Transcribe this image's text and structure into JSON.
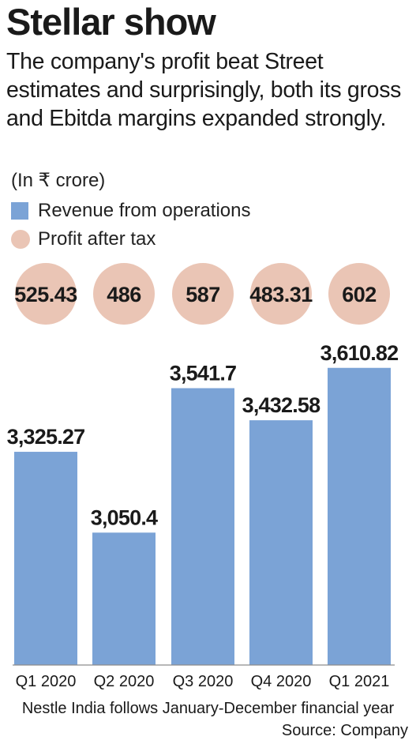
{
  "header": {
    "title": "Stellar show",
    "subtitle": "The company's profit beat Street estimates and surprisingly, both its gross and Ebitda margins expanded strongly.",
    "unit": "(In ₹ crore)"
  },
  "legend": {
    "revenue_label": "Revenue from operations",
    "profit_label": "Profit after tax"
  },
  "colors": {
    "bar": "#7ba3d6",
    "bubble": "#eac5b5",
    "text": "#1a1a1a"
  },
  "chart_data": {
    "type": "bar",
    "categories": [
      "Q1 2020",
      "Q2 2020",
      "Q3 2020",
      "Q4 2020",
      "Q1 2021"
    ],
    "series": [
      {
        "name": "Revenue from operations",
        "values": [
          3325.27,
          3050.4,
          3541.7,
          3432.58,
          3610.82
        ],
        "labels": [
          "3,325.27",
          "3,050.4",
          "3,541.7",
          "3,432.58",
          "3,610.82"
        ]
      },
      {
        "name": "Profit after tax",
        "values": [
          525.43,
          486,
          587,
          483.31,
          602
        ],
        "labels": [
          "525.43",
          "486",
          "587",
          "483.31",
          "602"
        ]
      }
    ],
    "ylim": [
      2600,
      3680
    ]
  },
  "footer": {
    "note": "Nestle India follows January-December financial year",
    "source": "Source: Company"
  }
}
